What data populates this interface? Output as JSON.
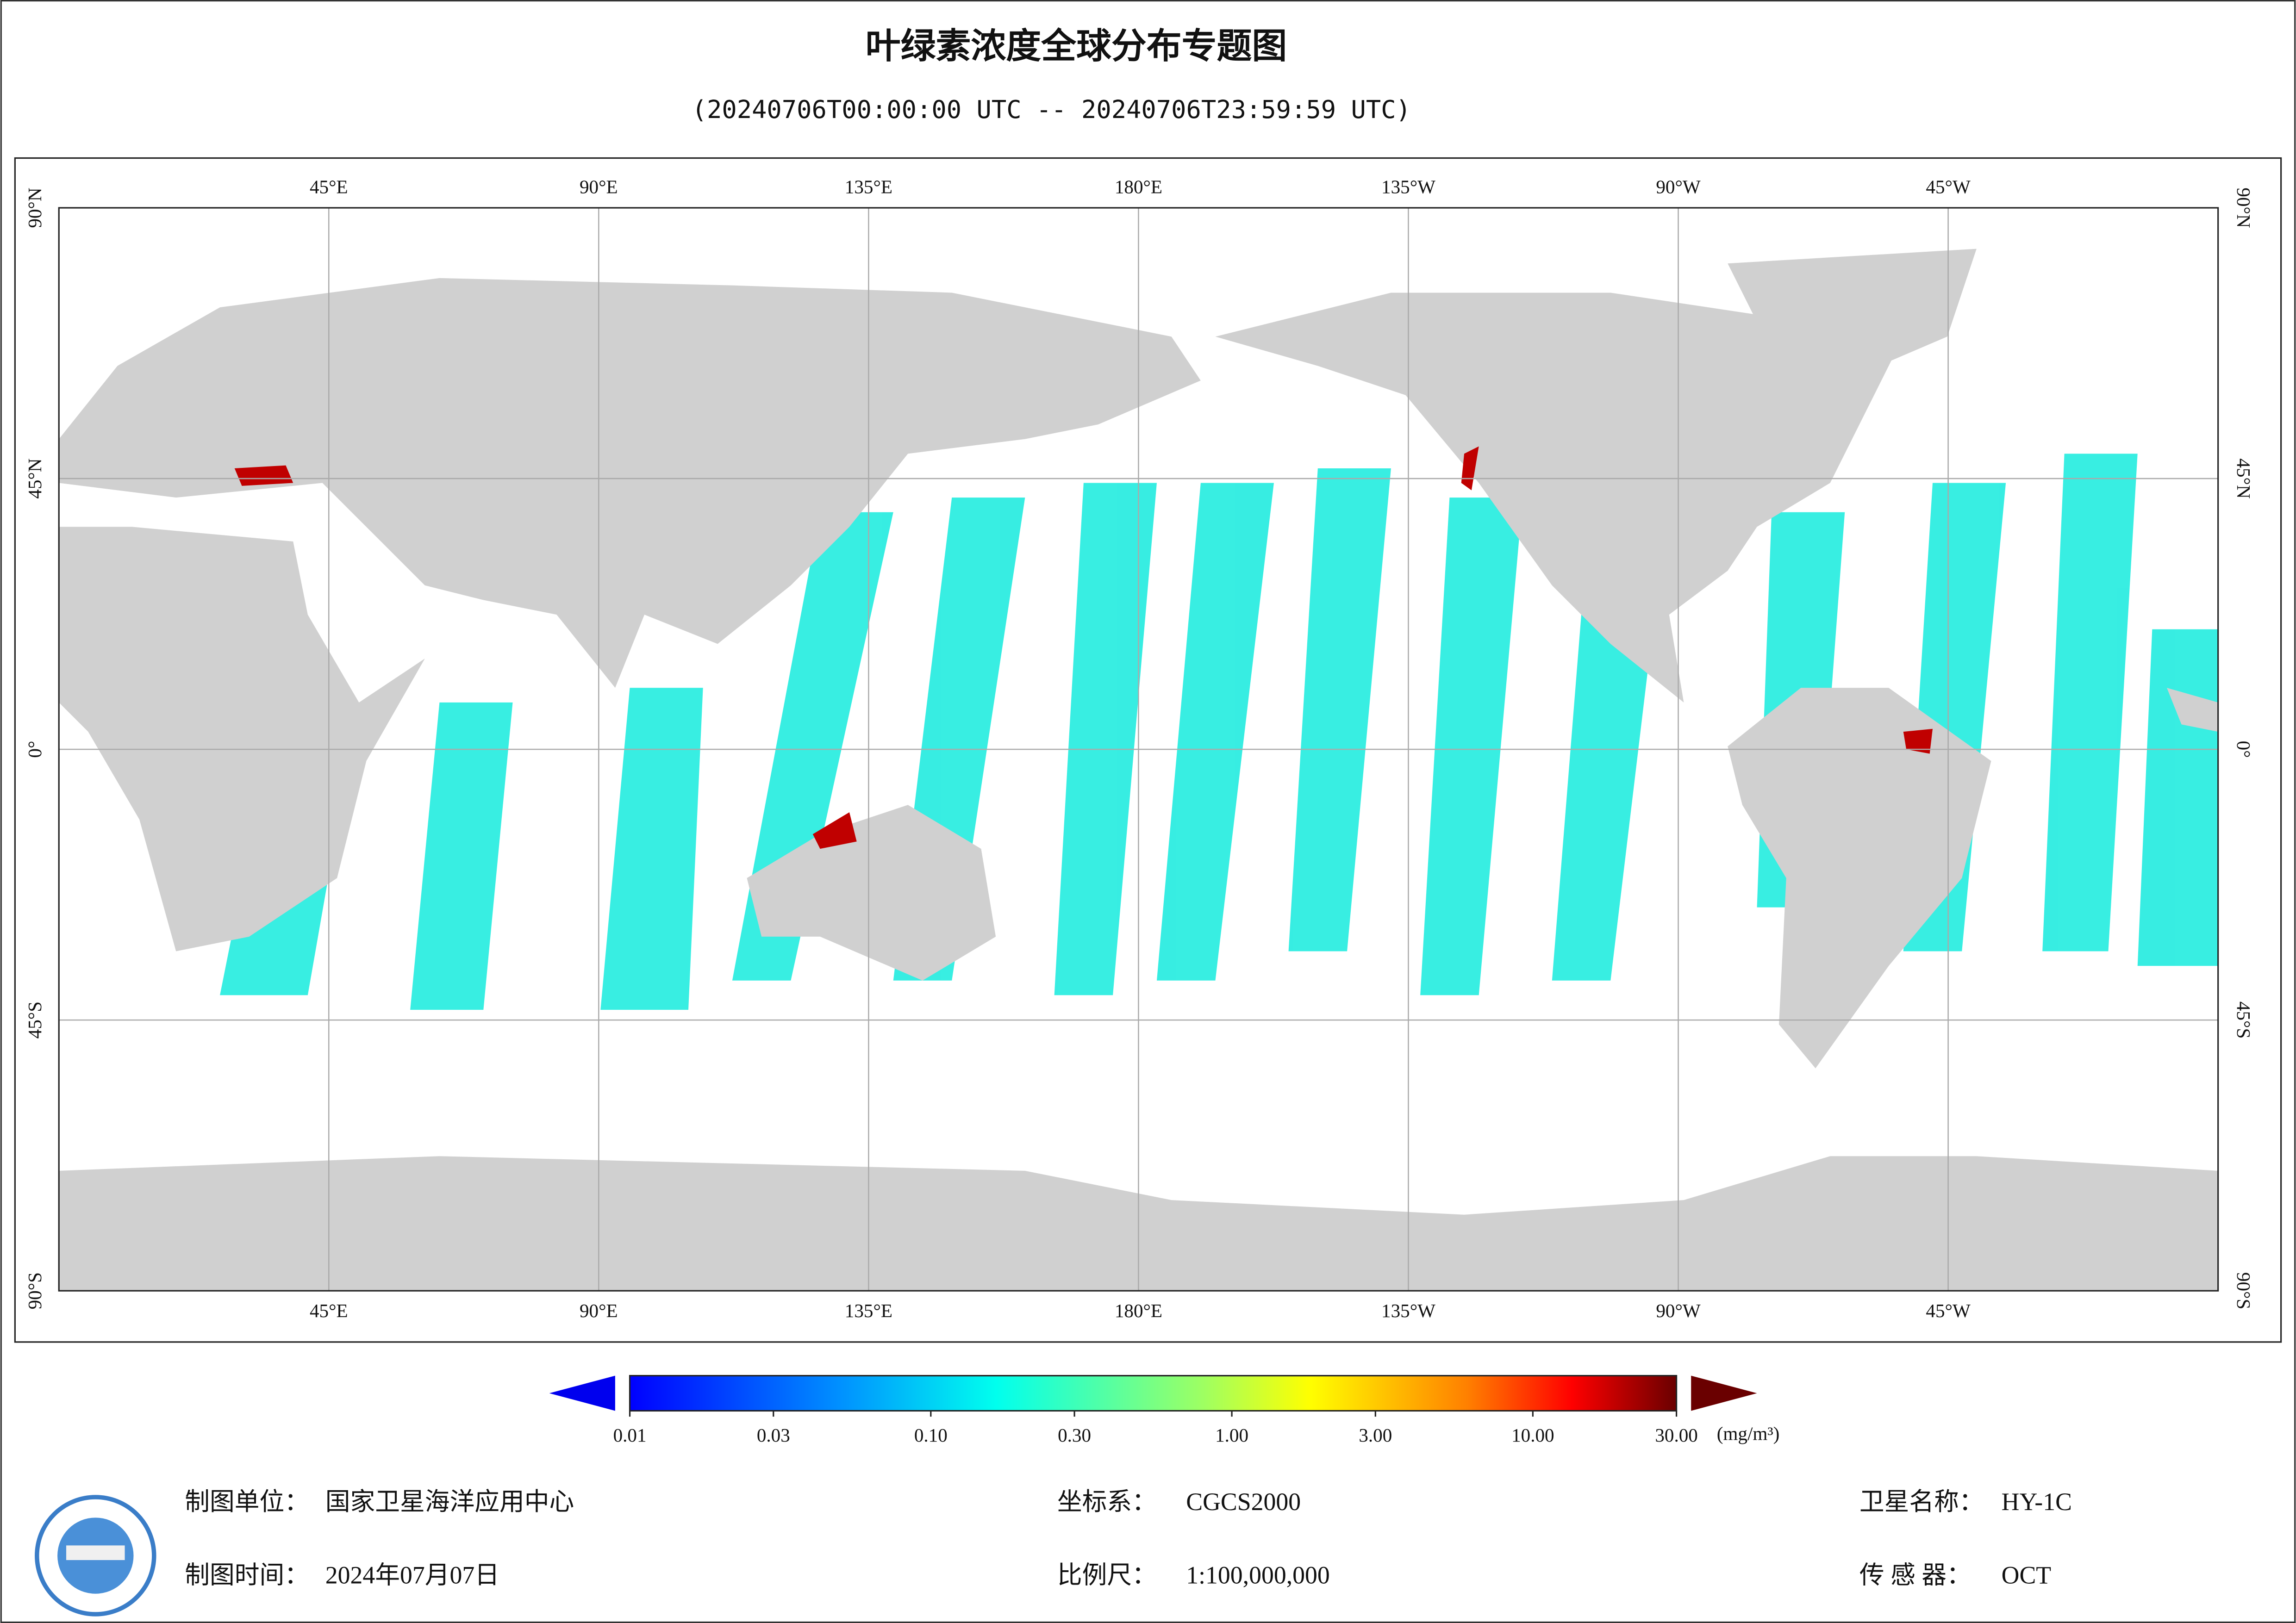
{
  "header": {
    "title": "叶绿素浓度全球分布专题图",
    "subtitle": "(20240706T00:00:00 UTC -- 20240706T23:59:59 UTC)"
  },
  "map": {
    "lon_labels": [
      "45°E",
      "90°E",
      "135°E",
      "180°E",
      "135°W",
      "90°W",
      "45°W"
    ],
    "lat_labels": [
      "90°N",
      "45°N",
      "0°",
      "45°S",
      "90°S"
    ]
  },
  "colorbar": {
    "scale": "log",
    "lim": [
      0.01,
      30
    ],
    "ticks": [
      {
        "value": 0.01,
        "label": "0.01"
      },
      {
        "value": 0.03,
        "label": "0.03"
      },
      {
        "value": 0.1,
        "label": "0.10"
      },
      {
        "value": 0.3,
        "label": "0.30"
      },
      {
        "value": 1,
        "label": "1.00"
      },
      {
        "value": 3,
        "label": "3.00"
      },
      {
        "value": 10,
        "label": "10.00"
      },
      {
        "value": 30,
        "label": "30.00"
      }
    ],
    "unit": "(mg/m³)"
  },
  "footer": {
    "unit_label": "制图单位：",
    "unit": "国家卫星海洋应用中心",
    "time_label": "制图时间：",
    "time": "2024年07月07日",
    "crs_label": "坐标系：",
    "crs": "CGCS2000",
    "scale_label": "比例尺：",
    "scale": "1:100,000,000",
    "satellite_label": "卫星名称：",
    "satellite": "HY-1C",
    "sensor_label": "传 感 器：",
    "sensor": "OCT"
  }
}
